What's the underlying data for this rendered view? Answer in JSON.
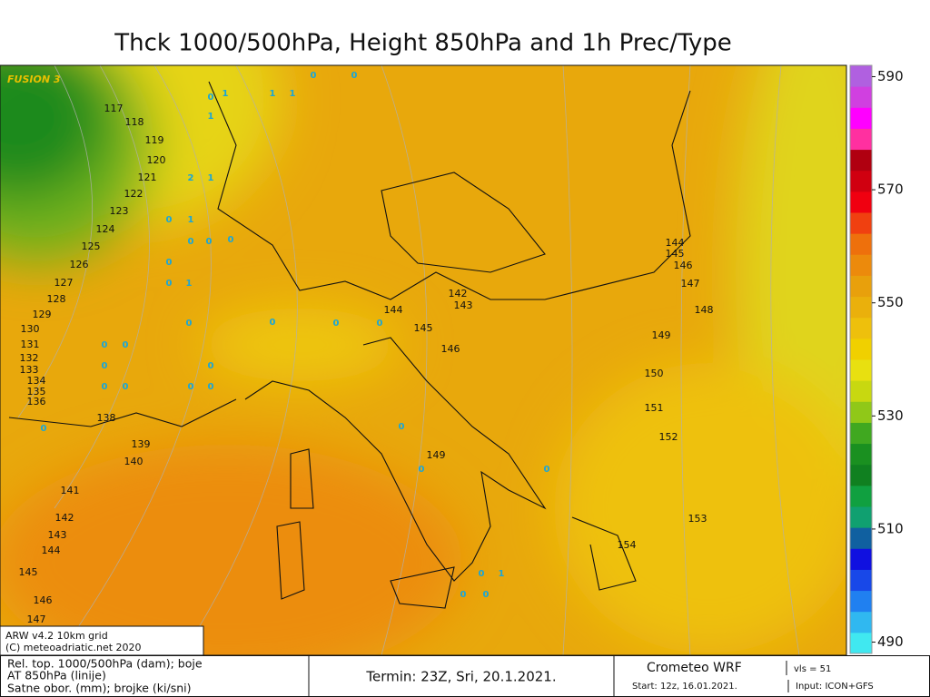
{
  "title": "Thck 1000/500hPa, Height 850hPa and 1h Prec/Type",
  "model_tag": "FUSION 3",
  "colorbar": {
    "lim": [
      488,
      592
    ],
    "ticks": [
      490,
      510,
      530,
      550,
      570,
      590
    ]
  },
  "contour_labels": [
    "117",
    "118",
    "119",
    "120",
    "121",
    "122",
    "123",
    "124",
    "125",
    "126",
    "127",
    "128",
    "129",
    "130",
    "131",
    "132",
    "133",
    "134",
    "135",
    "136",
    "138",
    "139",
    "140",
    "141",
    "142",
    "143",
    "144",
    "145",
    "146",
    "147",
    "144",
    "145",
    "146",
    "147",
    "148",
    "149",
    "150",
    "151",
    "152",
    "153",
    "154",
    "149",
    "142",
    "143",
    "144",
    "145",
    "146"
  ],
  "precip_labels": [
    "0",
    "1",
    "1",
    "1",
    "0",
    "0",
    "1",
    "2",
    "1",
    "0",
    "1",
    "0",
    "0",
    "0",
    "0",
    "0",
    "1",
    "0",
    "0",
    "0",
    "0",
    "0",
    "0",
    "0",
    "0",
    "0",
    "0",
    "0",
    "0",
    "0",
    "0",
    "0",
    "0",
    "0",
    "1",
    "0",
    "0"
  ],
  "info_box": {
    "line1": "ARW v4.2 10km grid",
    "line2": "(C) meteoadriatic.net 2020"
  },
  "footer": {
    "legend1": "Rel. top. 1000/500hPa (dam); boje",
    "legend2": "AT 850hPa (linije)",
    "legend3": "Satne obor. (mm); brojke (ki/sni)",
    "termin": "Termin: 23Z, Sri, 20.1.2021.",
    "model": "Crometeo WRF",
    "vls": "vls = 51",
    "start": "Start: 12z, 16.01.2021.",
    "input": "Input: ICON+GFS"
  }
}
